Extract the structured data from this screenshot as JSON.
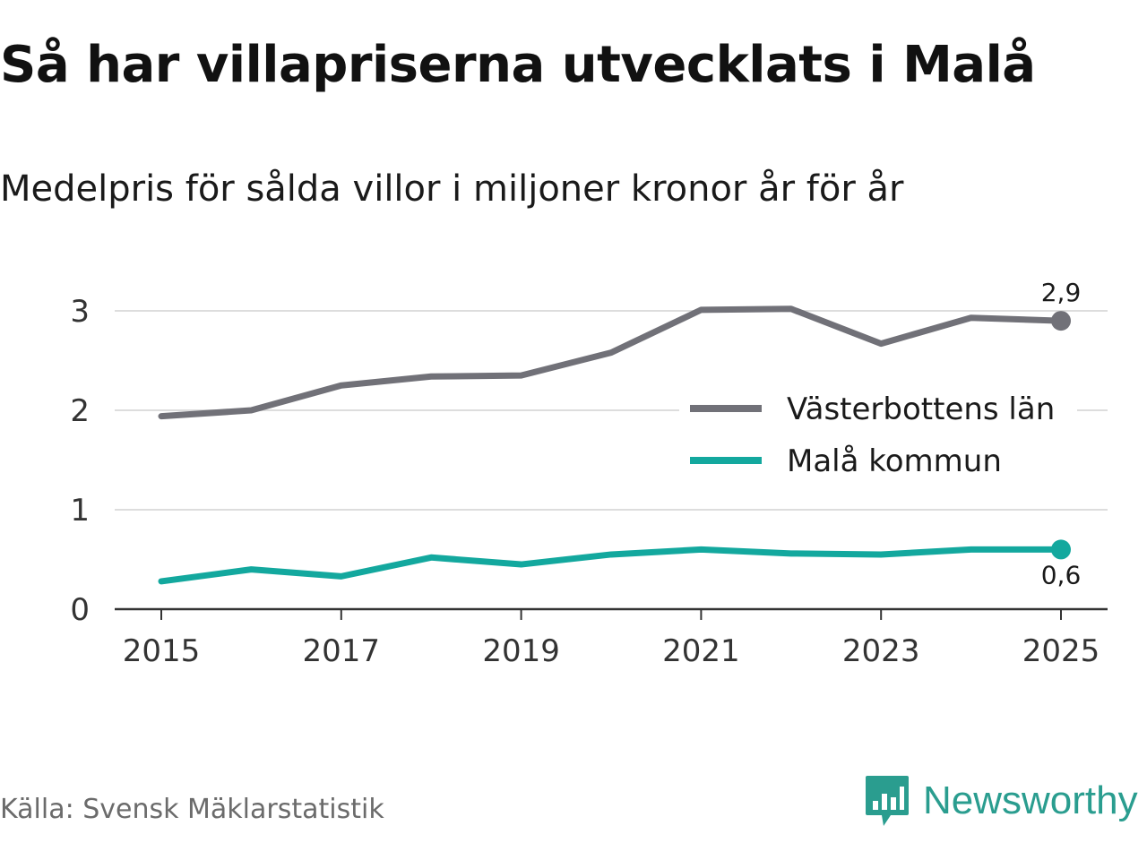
{
  "title": "Så har villapriserna utvecklats i Malå",
  "subtitle": "Medelpris för sålda villor i miljoner kronor år för år",
  "source": "Källa: Svensk Mäklarstatistik",
  "brand": {
    "name": "Newsworthy",
    "icon": "newsworthy-logo-icon",
    "color": "#2a9d8f"
  },
  "colors": {
    "county_line": "#717178",
    "municipality_line": "#13a89e",
    "gridline": "#dddddd",
    "axis": "#333333"
  },
  "chart_data": {
    "type": "line",
    "title": "Så har villapriserna utvecklats i Malå",
    "subtitle": "Medelpris för sålda villor i miljoner kronor år för år",
    "xlabel": "",
    "ylabel": "",
    "x": [
      2015,
      2016,
      2017,
      2018,
      2019,
      2020,
      2021,
      2022,
      2023,
      2024,
      2025
    ],
    "x_ticks": [
      2015,
      2017,
      2019,
      2021,
      2023,
      2025
    ],
    "x_tick_labels": [
      "2015",
      "2017",
      "2019",
      "2021",
      "2023",
      "2025"
    ],
    "xlim": [
      2014.5,
      2025.5
    ],
    "y_ticks": [
      0,
      1,
      2,
      3
    ],
    "y_tick_labels": [
      "0",
      "1",
      "2",
      "3"
    ],
    "ylim": [
      0,
      3.3
    ],
    "grid": true,
    "legend_position": "middle-right",
    "series": [
      {
        "name": "Västerbottens län",
        "color": "#717178",
        "values": [
          1.94,
          2.0,
          2.25,
          2.34,
          2.35,
          2.58,
          3.01,
          3.02,
          2.67,
          2.93,
          2.9
        ],
        "end_label": "2,9"
      },
      {
        "name": "Malå kommun",
        "color": "#13a89e",
        "values": [
          0.28,
          0.4,
          0.33,
          0.52,
          0.45,
          0.55,
          0.6,
          0.56,
          0.55,
          0.6,
          0.6
        ],
        "end_label": "0,6"
      }
    ]
  }
}
